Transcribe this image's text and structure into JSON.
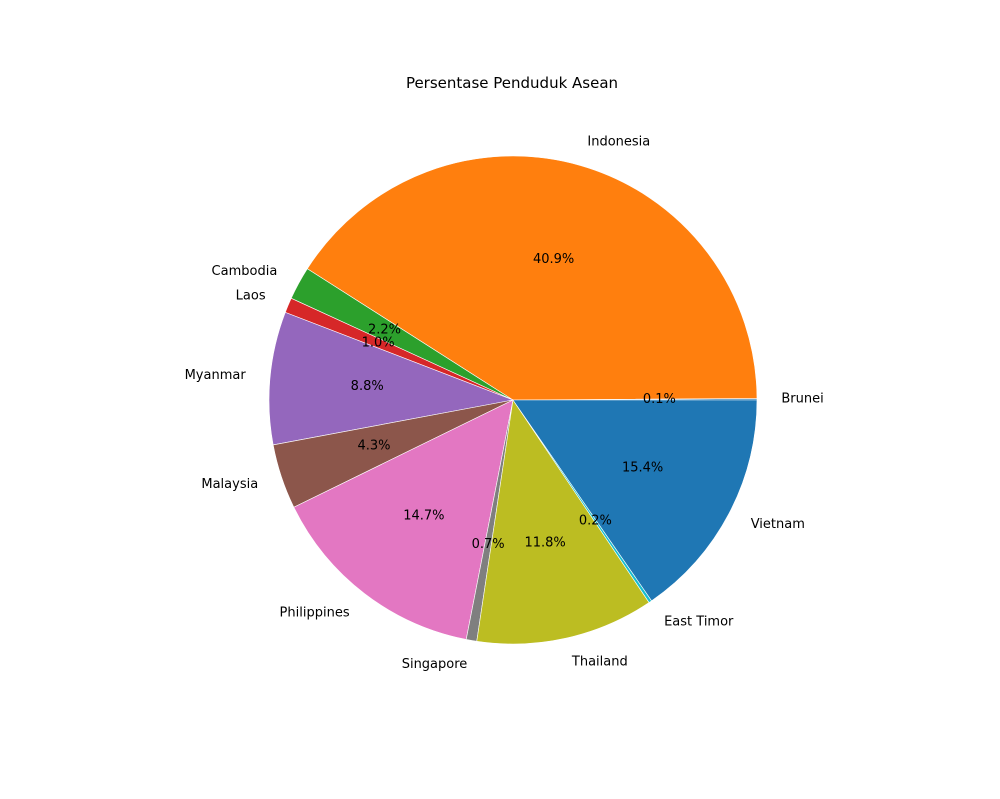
{
  "chart_data": {
    "type": "pie",
    "title": "Persentase Penduduk Asean",
    "start_angle_deg": 0,
    "direction": "counterclockwise",
    "slices": [
      {
        "label": "Brunei",
        "value": 0.1,
        "pct_label": "0.1%",
        "color": "#1f77b4"
      },
      {
        "label": "Indonesia",
        "value": 40.9,
        "pct_label": "40.9%",
        "color": "#ff7f0e"
      },
      {
        "label": "Cambodia",
        "value": 2.2,
        "pct_label": "2.2%",
        "color": "#2ca02c"
      },
      {
        "label": "Laos",
        "value": 1.0,
        "pct_label": "1.0%",
        "color": "#d62728"
      },
      {
        "label": "Myanmar",
        "value": 8.8,
        "pct_label": "8.8%",
        "color": "#9467bd"
      },
      {
        "label": "Malaysia",
        "value": 4.3,
        "pct_label": "4.3%",
        "color": "#8c564b"
      },
      {
        "label": "Philippines",
        "value": 14.7,
        "pct_label": "14.7%",
        "color": "#e377c2"
      },
      {
        "label": "Singapore",
        "value": 0.7,
        "pct_label": "0.7%",
        "color": "#7f7f7f"
      },
      {
        "label": "Thailand",
        "value": 11.8,
        "pct_label": "11.8%",
        "color": "#bcbd22"
      },
      {
        "label": "East Timor",
        "value": 0.2,
        "pct_label": "0.2%",
        "color": "#17becf"
      },
      {
        "label": "Vietnam",
        "value": 15.4,
        "pct_label": "15.4%",
        "color": "#1f77b4"
      }
    ]
  }
}
